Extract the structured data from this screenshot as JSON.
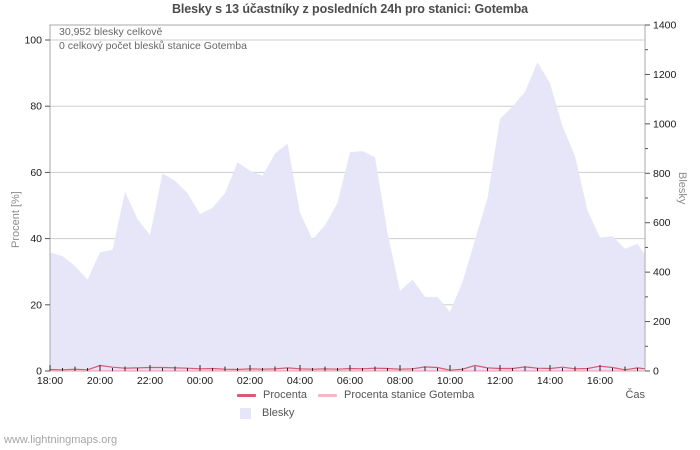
{
  "chart": {
    "title": "Blesky s 13 účastníky z posledních 24h pro stanici: Gotemba",
    "annotations": {
      "total": "30,952 blesky celkově",
      "station_total": "0 celkový počet blesků stanice Gotemba"
    },
    "ylabel_left": "Procent  [%]",
    "ylabel_right": "Blesky",
    "xlabel": "Čas"
  },
  "legend": {
    "procenta": "Procenta",
    "station": "Procenta stanice Gotemba",
    "blesky": "Blesky"
  },
  "watermark": "www.lightningmaps.org",
  "colors": {
    "area_fill": "#e6e6f8",
    "procenta_line": "#d55c72",
    "station_line": "#f4b8c4",
    "grid": "#cdcdcd",
    "border": "#a9a9a9",
    "tick": "#2a2a2a"
  },
  "chart_data": {
    "type": "area",
    "title": "Blesky s 13 účastníky z posledních 24h pro stanici: Gotemba",
    "xlabel": "Čas",
    "ylabel_left": "Procent [%]",
    "ylabel_right": "Blesky",
    "ylim_left": [
      0,
      100
    ],
    "ylim_right": [
      0,
      1400
    ],
    "x_hours_span": 23.8,
    "grid": "horizontal-only",
    "legend_position": "bottom-center",
    "x_tick_labels": [
      "18:00",
      "20:00",
      "22:00",
      "00:00",
      "02:00",
      "04:00",
      "06:00",
      "08:00",
      "10:00",
      "12:00",
      "14:00",
      "16:00"
    ],
    "x_tick_hours": [
      0,
      2,
      4,
      6,
      8,
      10,
      12,
      14,
      16,
      18,
      20,
      22
    ],
    "yticks_left": [
      0,
      20,
      40,
      60,
      80,
      100
    ],
    "yticks_right": [
      0,
      200,
      400,
      600,
      800,
      1000,
      1200,
      1400
    ],
    "yticks_right_minor": [
      100,
      300,
      500,
      700,
      900,
      1100,
      1300
    ],
    "series": [
      {
        "name": "Blesky",
        "kind": "area",
        "axis": "right",
        "points": [
          [
            0,
            480
          ],
          [
            0.5,
            465
          ],
          [
            1,
            425
          ],
          [
            1.5,
            370
          ],
          [
            2,
            480
          ],
          [
            2.5,
            490
          ],
          [
            3,
            725
          ],
          [
            3.5,
            615
          ],
          [
            4,
            550
          ],
          [
            4.5,
            800
          ],
          [
            5,
            770
          ],
          [
            5.5,
            720
          ],
          [
            6,
            635
          ],
          [
            6.5,
            660
          ],
          [
            7,
            720
          ],
          [
            7.5,
            845
          ],
          [
            8,
            810
          ],
          [
            8.5,
            790
          ],
          [
            9,
            880
          ],
          [
            9.5,
            920
          ],
          [
            10,
            640
          ],
          [
            10.5,
            532
          ],
          [
            11,
            590
          ],
          [
            11.5,
            680
          ],
          [
            12,
            885
          ],
          [
            12.5,
            890
          ],
          [
            13,
            865
          ],
          [
            13.5,
            560
          ],
          [
            14,
            325
          ],
          [
            14.5,
            370
          ],
          [
            15,
            300
          ],
          [
            15.5,
            300
          ],
          [
            16,
            240
          ],
          [
            16.5,
            360
          ],
          [
            17,
            530
          ],
          [
            17.5,
            700
          ],
          [
            18,
            1020
          ],
          [
            18.5,
            1070
          ],
          [
            19,
            1130
          ],
          [
            19.5,
            1250
          ],
          [
            20,
            1165
          ],
          [
            20.5,
            990
          ],
          [
            21,
            870
          ],
          [
            21.5,
            650
          ],
          [
            22,
            540
          ],
          [
            22.5,
            545
          ],
          [
            23,
            495
          ],
          [
            23.5,
            515
          ],
          [
            23.8,
            470
          ]
        ]
      },
      {
        "name": "Procenta",
        "kind": "line",
        "axis": "left",
        "points": [
          [
            0,
            0.3
          ],
          [
            0.5,
            0.2
          ],
          [
            1,
            0.4
          ],
          [
            1.5,
            0.2
          ],
          [
            2,
            1.5
          ],
          [
            2.5,
            1.0
          ],
          [
            3,
            0.7
          ],
          [
            3.5,
            0.8
          ],
          [
            4,
            0.9
          ],
          [
            4.5,
            0.9
          ],
          [
            5,
            0.8
          ],
          [
            5.5,
            0.7
          ],
          [
            6,
            0.5
          ],
          [
            6.5,
            0.6
          ],
          [
            7,
            0.4
          ],
          [
            7.5,
            0.3
          ],
          [
            8,
            0.5
          ],
          [
            8.5,
            0.4
          ],
          [
            9,
            0.5
          ],
          [
            9.5,
            0.8
          ],
          [
            10,
            0.5
          ],
          [
            10.5,
            0.4
          ],
          [
            11,
            0.5
          ],
          [
            11.5,
            0.4
          ],
          [
            12,
            0.6
          ],
          [
            12.5,
            0.5
          ],
          [
            13,
            0.7
          ],
          [
            13.5,
            0.6
          ],
          [
            14,
            0.4
          ],
          [
            14.5,
            0.5
          ],
          [
            15,
            1.1
          ],
          [
            15.5,
            0.9
          ],
          [
            16,
            0.1
          ],
          [
            16.5,
            0.4
          ],
          [
            17,
            1.5
          ],
          [
            17.5,
            0.8
          ],
          [
            18,
            0.6
          ],
          [
            18.5,
            0.6
          ],
          [
            19,
            1.1
          ],
          [
            19.5,
            0.7
          ],
          [
            20,
            0.6
          ],
          [
            20.5,
            1.0
          ],
          [
            21,
            0.5
          ],
          [
            21.5,
            0.6
          ],
          [
            22,
            1.3
          ],
          [
            22.5,
            0.9
          ],
          [
            23,
            0.2
          ],
          [
            23.5,
            0.8
          ],
          [
            23.8,
            0.5
          ]
        ]
      },
      {
        "name": "Procenta stanice Gotemba",
        "kind": "line",
        "axis": "left",
        "points": [
          [
            0,
            0
          ],
          [
            23.8,
            0
          ]
        ]
      }
    ]
  }
}
